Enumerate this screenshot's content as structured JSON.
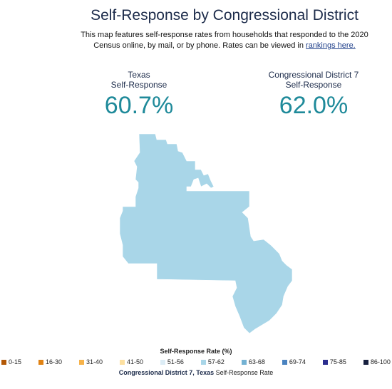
{
  "header": {
    "title": "Self-Response by Congressional District",
    "description": "This map features self-response rates from households that responded to the 2020 Census online, by mail, or by phone. Rates can be viewed in",
    "link_text": "rankings here."
  },
  "stats": {
    "state": {
      "label_line1": "Texas",
      "label_line2": "Self-Response",
      "value": "60.7%"
    },
    "district": {
      "label_line1": "Congressional District 7",
      "label_line2": "Self-Response",
      "value": "62.0%"
    }
  },
  "map": {
    "region_name": "Congressional District 7",
    "fill_color": "#a9d6e8"
  },
  "legend": {
    "title": "Self-Response Rate (%)",
    "items": [
      {
        "label": "0-15",
        "color": "#b35806"
      },
      {
        "label": "16-30",
        "color": "#e08214"
      },
      {
        "label": "31-40",
        "color": "#f6b24a"
      },
      {
        "label": "41-50",
        "color": "#fde0a0"
      },
      {
        "label": "51-56",
        "color": "#dcecf5"
      },
      {
        "label": "57-62",
        "color": "#a9d6e8"
      },
      {
        "label": "63-68",
        "color": "#74b2d3"
      },
      {
        "label": "69-74",
        "color": "#4a83c0"
      },
      {
        "label": "75-85",
        "color": "#2c2e8f"
      },
      {
        "label": "86-100",
        "color": "#17203f"
      }
    ]
  },
  "footer": {
    "bold": "Congressional District 7, Texas",
    "rest": " Self-Response Rate"
  }
}
